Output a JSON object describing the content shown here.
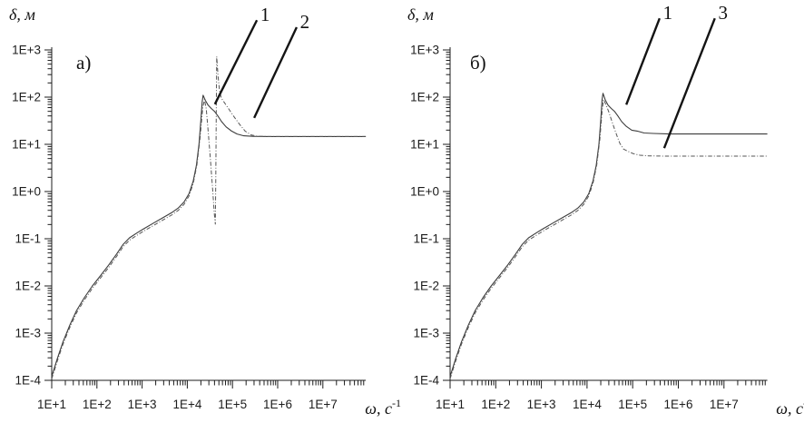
{
  "figure": {
    "background": "#ffffff",
    "curve_color_solid": "#3c3c3c",
    "curve_color_dashdot": "#565656",
    "axis_color": "#1c1c1c",
    "pointer_color": "#141414"
  },
  "chart_data": [
    {
      "type": "line",
      "panel_label": "а)",
      "ylabel": "δ, м",
      "xlabel_base": "ω, с",
      "xlabel_sup": "-1",
      "x_scale": "log",
      "y_scale": "log",
      "xlim_log10": [
        1,
        7.95
      ],
      "ylim_log10": [
        -4,
        3
      ],
      "x_tick_labels": [
        "1E+1",
        "1E+2",
        "1E+3",
        "1E+4",
        "1E+5",
        "1E+6",
        "1E+7"
      ],
      "y_tick_labels": [
        "1E+3",
        "1E+2",
        "1E+1",
        "1E+0",
        "1E-1",
        "1E-2",
        "1E-3",
        "1E-4"
      ],
      "grid": false,
      "legend": "callout numbers pointing at curves",
      "series": [
        {
          "name": "1",
          "style": "solid",
          "description": "resonance peak ~1.1E+2 m at ω≈2E+4 s⁻¹, high-frequency plateau ~1.5E+1 m",
          "points_log10": [
            [
              1.0,
              -3.92
            ],
            [
              1.12,
              -3.55
            ],
            [
              1.25,
              -3.18
            ],
            [
              1.4,
              -2.83
            ],
            [
              1.55,
              -2.52
            ],
            [
              1.72,
              -2.25
            ],
            [
              1.9,
              -2.0
            ],
            [
              2.08,
              -1.78
            ],
            [
              2.26,
              -1.56
            ],
            [
              2.44,
              -1.32
            ],
            [
              2.58,
              -1.12
            ],
            [
              2.72,
              -0.98
            ],
            [
              2.88,
              -0.88
            ],
            [
              3.05,
              -0.78
            ],
            [
              3.25,
              -0.67
            ],
            [
              3.45,
              -0.56
            ],
            [
              3.65,
              -0.45
            ],
            [
              3.8,
              -0.35
            ],
            [
              3.93,
              -0.22
            ],
            [
              4.04,
              -0.04
            ],
            [
              4.13,
              0.22
            ],
            [
              4.2,
              0.55
            ],
            [
              4.26,
              1.0
            ],
            [
              4.3,
              1.5
            ],
            [
              4.33,
              1.9
            ],
            [
              4.35,
              2.04
            ],
            [
              4.4,
              1.93
            ],
            [
              4.46,
              1.83
            ],
            [
              4.53,
              1.76
            ],
            [
              4.6,
              1.7
            ],
            [
              4.67,
              1.61
            ],
            [
              4.76,
              1.48
            ],
            [
              4.86,
              1.37
            ],
            [
              4.98,
              1.28
            ],
            [
              5.1,
              1.22
            ],
            [
              5.25,
              1.18
            ],
            [
              5.45,
              1.17
            ],
            [
              5.8,
              1.165
            ],
            [
              7.95,
              1.165
            ]
          ]
        },
        {
          "name": "2",
          "style": "dashdot",
          "description": "antiresonance notch ~2E-1 m and narrow resonance spike ~7E+2 m near ω≈4E+4 s⁻¹, plateau ~1.5E+1 m",
          "points_log10": [
            [
              1.0,
              -3.97
            ],
            [
              1.12,
              -3.6
            ],
            [
              1.25,
              -3.23
            ],
            [
              1.4,
              -2.88
            ],
            [
              1.55,
              -2.57
            ],
            [
              1.72,
              -2.3
            ],
            [
              1.9,
              -2.05
            ],
            [
              2.08,
              -1.83
            ],
            [
              2.26,
              -1.61
            ],
            [
              2.44,
              -1.37
            ],
            [
              2.58,
              -1.17
            ],
            [
              2.72,
              -1.03
            ],
            [
              2.88,
              -0.93
            ],
            [
              3.05,
              -0.83
            ],
            [
              3.25,
              -0.72
            ],
            [
              3.45,
              -0.61
            ],
            [
              3.65,
              -0.5
            ],
            [
              3.8,
              -0.4
            ],
            [
              3.93,
              -0.27
            ],
            [
              4.04,
              -0.09
            ],
            [
              4.13,
              0.17
            ],
            [
              4.21,
              0.55
            ],
            [
              4.28,
              1.1
            ],
            [
              4.34,
              1.75
            ],
            [
              4.38,
              1.95
            ],
            [
              4.42,
              1.75
            ],
            [
              4.46,
              1.3
            ],
            [
              4.51,
              0.7
            ],
            [
              4.56,
              0.05
            ],
            [
              4.6,
              -0.5
            ],
            [
              4.62,
              -0.69
            ],
            [
              4.63,
              0.3
            ],
            [
              4.64,
              1.6
            ],
            [
              4.65,
              2.86
            ],
            [
              4.68,
              2.45
            ],
            [
              4.71,
              2.15
            ],
            [
              4.75,
              1.98
            ],
            [
              4.81,
              1.9
            ],
            [
              4.91,
              1.76
            ],
            [
              5.03,
              1.59
            ],
            [
              5.15,
              1.43
            ],
            [
              5.28,
              1.28
            ],
            [
              5.41,
              1.2
            ],
            [
              5.56,
              1.17
            ],
            [
              5.85,
              1.165
            ],
            [
              7.95,
              1.165
            ]
          ]
        }
      ],
      "annotations": [
        {
          "label": "1",
          "line_end_log10": [
            5.54,
            3.63
          ],
          "line_tip_log10": [
            4.61,
            1.85
          ]
        },
        {
          "label": "2",
          "line_end_log10": [
            6.42,
            3.48
          ],
          "line_tip_log10": [
            5.48,
            1.56
          ]
        }
      ]
    },
    {
      "type": "line",
      "panel_label": "б)",
      "ylabel": "δ, м",
      "xlabel_base": "ω, с",
      "xlabel_sup": "-1",
      "x_scale": "log",
      "y_scale": "log",
      "xlim_log10": [
        1,
        7.95
      ],
      "ylim_log10": [
        -4,
        3
      ],
      "x_tick_labels": [
        "1E+1",
        "1E+2",
        "1E+3",
        "1E+4",
        "1E+5",
        "1E+6",
        "1E+7"
      ],
      "y_tick_labels": [
        "1E+3",
        "1E+2",
        "1E+1",
        "1E+0",
        "1E-1",
        "1E-2",
        "1E-3",
        "1E-4"
      ],
      "grid": false,
      "legend": "callout numbers pointing at curves",
      "series": [
        {
          "name": "1",
          "style": "solid",
          "description": "resonance peak ~1.2E+2 m at ω≈2E+4 s⁻¹, high-frequency plateau ~1.6E+1 m",
          "points_log10": [
            [
              1.0,
              -3.92
            ],
            [
              1.12,
              -3.55
            ],
            [
              1.25,
              -3.18
            ],
            [
              1.4,
              -2.83
            ],
            [
              1.55,
              -2.52
            ],
            [
              1.72,
              -2.25
            ],
            [
              1.9,
              -2.0
            ],
            [
              2.08,
              -1.78
            ],
            [
              2.26,
              -1.56
            ],
            [
              2.44,
              -1.32
            ],
            [
              2.58,
              -1.12
            ],
            [
              2.72,
              -0.98
            ],
            [
              2.88,
              -0.88
            ],
            [
              3.05,
              -0.78
            ],
            [
              3.25,
              -0.67
            ],
            [
              3.45,
              -0.56
            ],
            [
              3.65,
              -0.45
            ],
            [
              3.8,
              -0.35
            ],
            [
              3.93,
              -0.22
            ],
            [
              4.04,
              -0.04
            ],
            [
              4.13,
              0.22
            ],
            [
              4.2,
              0.55
            ],
            [
              4.26,
              1.0
            ],
            [
              4.3,
              1.5
            ],
            [
              4.33,
              1.95
            ],
            [
              4.35,
              2.08
            ],
            [
              4.4,
              1.94
            ],
            [
              4.46,
              1.83
            ],
            [
              4.53,
              1.76
            ],
            [
              4.6,
              1.7
            ],
            [
              4.67,
              1.61
            ],
            [
              4.76,
              1.48
            ],
            [
              4.86,
              1.38
            ],
            [
              4.98,
              1.3
            ],
            [
              5.1,
              1.28
            ],
            [
              5.25,
              1.24
            ],
            [
              5.45,
              1.23
            ],
            [
              5.8,
              1.22
            ],
            [
              7.95,
              1.22
            ]
          ]
        },
        {
          "name": "3",
          "style": "dashdot",
          "description": "same resonance, faster roll-off to lower plateau ~5.5E+0 m",
          "points_log10": [
            [
              1.0,
              -3.97
            ],
            [
              1.12,
              -3.6
            ],
            [
              1.25,
              -3.23
            ],
            [
              1.4,
              -2.88
            ],
            [
              1.55,
              -2.57
            ],
            [
              1.72,
              -2.3
            ],
            [
              1.9,
              -2.05
            ],
            [
              2.08,
              -1.83
            ],
            [
              2.26,
              -1.61
            ],
            [
              2.44,
              -1.37
            ],
            [
              2.58,
              -1.17
            ],
            [
              2.72,
              -1.03
            ],
            [
              2.88,
              -0.93
            ],
            [
              3.05,
              -0.83
            ],
            [
              3.25,
              -0.72
            ],
            [
              3.45,
              -0.61
            ],
            [
              3.65,
              -0.5
            ],
            [
              3.8,
              -0.4
            ],
            [
              3.93,
              -0.27
            ],
            [
              4.04,
              -0.09
            ],
            [
              4.13,
              0.17
            ],
            [
              4.21,
              0.55
            ],
            [
              4.28,
              1.1
            ],
            [
              4.33,
              1.7
            ],
            [
              4.36,
              1.95
            ],
            [
              4.42,
              1.83
            ],
            [
              4.48,
              1.68
            ],
            [
              4.54,
              1.5
            ],
            [
              4.6,
              1.33
            ],
            [
              4.66,
              1.17
            ],
            [
              4.72,
              1.02
            ],
            [
              4.8,
              0.9
            ],
            [
              4.9,
              0.85
            ],
            [
              5.02,
              0.8
            ],
            [
              5.16,
              0.77
            ],
            [
              5.35,
              0.755
            ],
            [
              5.7,
              0.75
            ],
            [
              7.95,
              0.75
            ]
          ]
        }
      ],
      "annotations": [
        {
          "label": "1",
          "line_end_log10": [
            5.59,
            3.67
          ],
          "line_tip_log10": [
            4.86,
            1.84
          ]
        },
        {
          "label": "3",
          "line_end_log10": [
            6.8,
            3.67
          ],
          "line_tip_log10": [
            5.69,
            0.92
          ]
        }
      ]
    }
  ]
}
